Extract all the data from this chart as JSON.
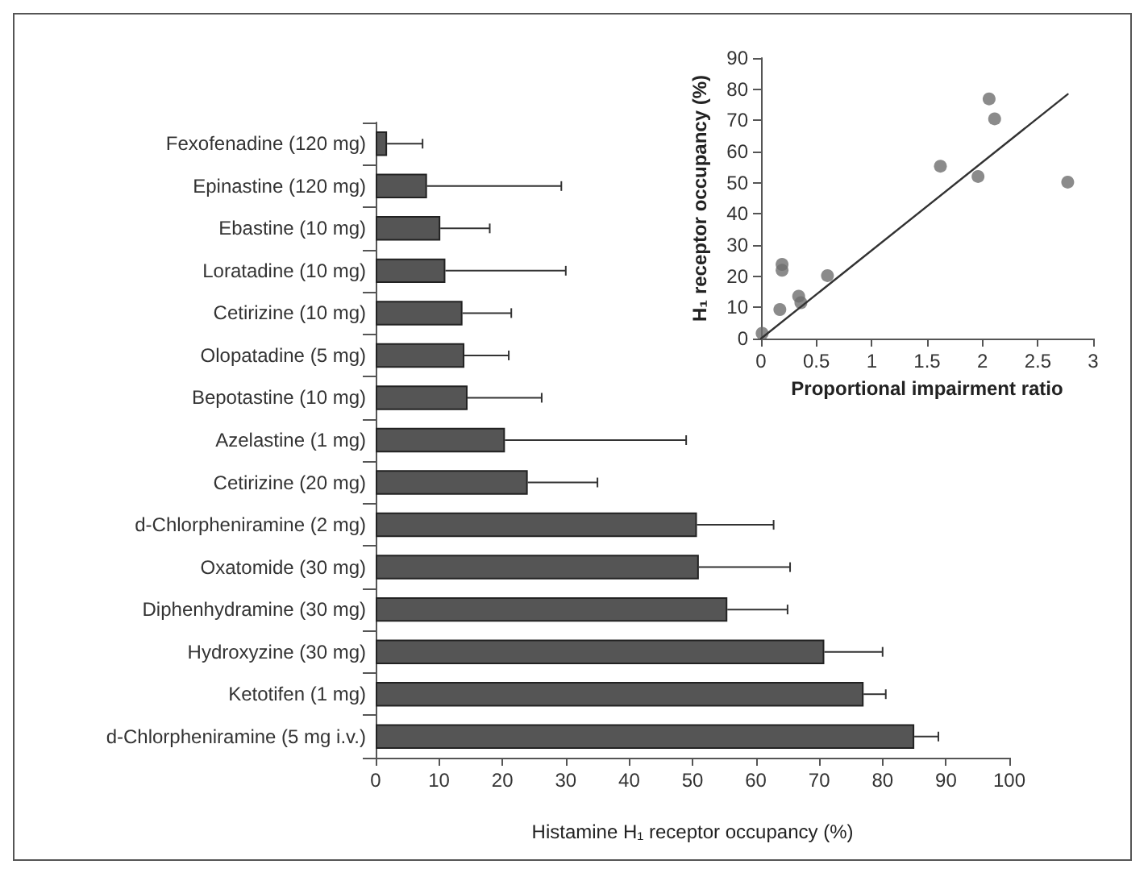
{
  "chart_data": [
    {
      "type": "bar",
      "orientation": "horizontal",
      "xlabel": "Histamine H₁ receptor occupancy (%)",
      "color": "#555555",
      "categories": [
        "Fexofenadine (120 mg)",
        "Epinastine (120 mg)",
        "Ebastine (10 mg)",
        "Loratadine (10 mg)",
        "Cetirizine (10 mg)",
        "Olopatadine (5 mg)",
        "Bepotastine (10 mg)",
        "Azelastine (1 mg)",
        "Cetirizine (20 mg)",
        "d-Chlorpheniramine (2 mg)",
        "Oxatomide (30 mg)",
        "Diphenhydramine (30 mg)",
        "Hydroxyzine (30 mg)",
        "Ketotifen (1 mg)",
        "d-Chlorpheniramine (5 mg i.v.)"
      ],
      "values": [
        1.8,
        8.1,
        10.2,
        11,
        13.7,
        14,
        14.5,
        20.4,
        24,
        50.7,
        51,
        55.5,
        70.8,
        77,
        85
      ],
      "errors": [
        [
          1.8,
          7.4
        ],
        [
          8.1,
          29.3
        ],
        [
          10.2,
          18
        ],
        [
          11,
          30
        ],
        [
          13.7,
          21.4
        ],
        [
          14,
          21
        ],
        [
          14.5,
          26.2
        ],
        [
          20.4,
          49
        ],
        [
          24,
          35
        ],
        [
          50.7,
          62.8
        ],
        [
          51,
          65.4
        ],
        [
          55.5,
          65
        ],
        [
          70.8,
          80
        ],
        [
          77,
          80.5
        ],
        [
          85,
          88.8
        ]
      ],
      "xlim": [
        0,
        100
      ],
      "xticks": [
        0,
        10,
        20,
        30,
        40,
        50,
        60,
        70,
        80,
        90,
        100
      ],
      "grid": false
    },
    {
      "type": "scatter",
      "xlabel": "Proportional impairment ratio",
      "ylabel": "H₁ receptor occupancy (%)",
      "series": [
        {
          "type": "scatter",
          "color": "#6e6e6e",
          "marker": "circle",
          "x": [
            0.01,
            0.17,
            0.19,
            0.19,
            0.34,
            0.36,
            0.6,
            1.62,
            1.96,
            2.06,
            2.11,
            2.77
          ],
          "values": [
            1.7,
            9.3,
            23.8,
            21.9,
            13.6,
            11.5,
            20.2,
            55.3,
            52,
            76.9,
            70.5,
            50.2
          ]
        },
        {
          "type": "line",
          "color": "#333333",
          "marker": "none",
          "line_style": "solid",
          "x": [
            0,
            2.77
          ],
          "values": [
            0,
            78.4
          ]
        }
      ],
      "xlim": [
        0,
        3
      ],
      "xticks": [
        0,
        0.5,
        1,
        1.5,
        2,
        2.5,
        3
      ],
      "ylim": [
        0,
        90
      ],
      "yticks": [
        0,
        10,
        20,
        30,
        40,
        50,
        60,
        70,
        80,
        90
      ],
      "grid": false
    }
  ]
}
